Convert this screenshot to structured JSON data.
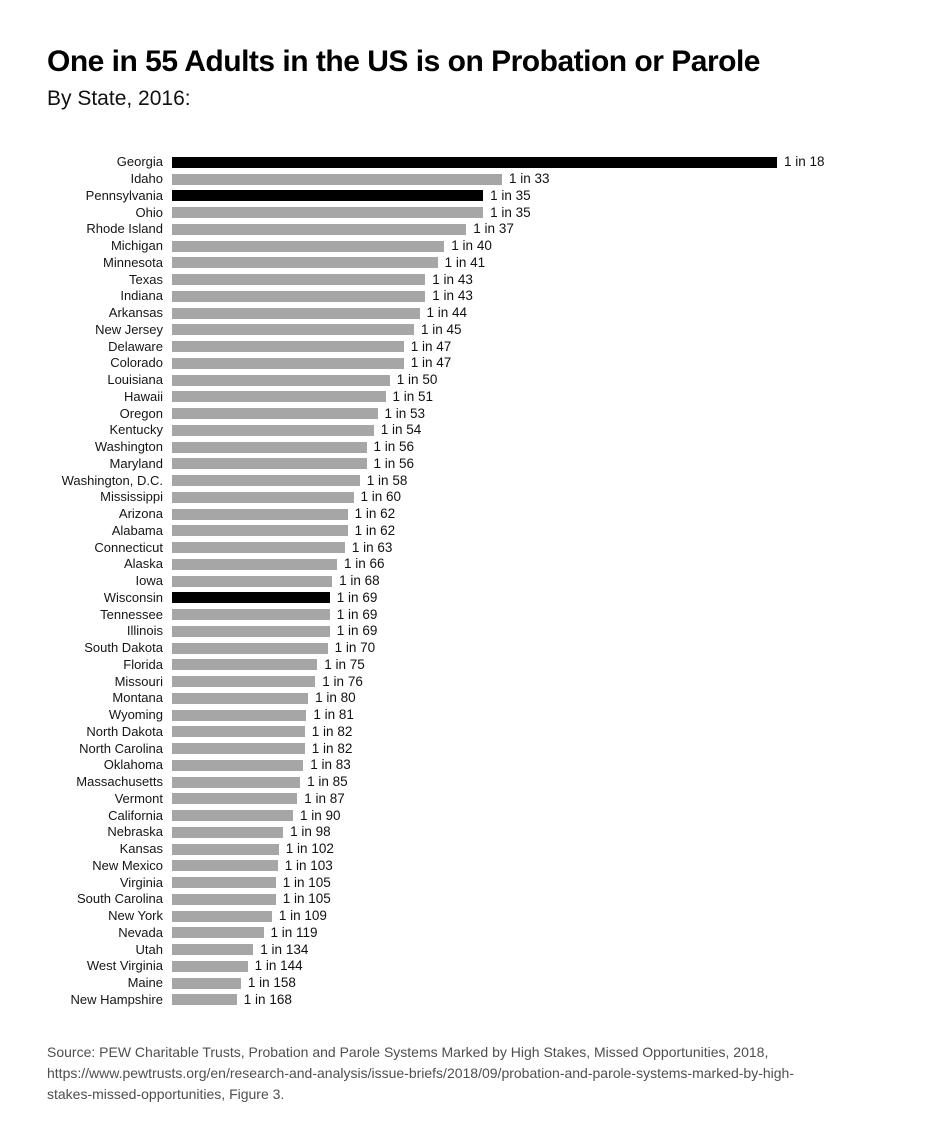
{
  "header": {
    "title": "One in 55 Adults in the US is on Probation or Parole",
    "subtitle": "By State, 2016:"
  },
  "colors": {
    "bar_default": "#a6a6a6",
    "bar_highlight": "#000000",
    "source_text": "#4f4f4f",
    "background": "#ffffff"
  },
  "chart_data": {
    "type": "bar",
    "orientation": "horizontal",
    "title": "One in 55 Adults in the US is on Probation or Parole",
    "subtitle": "By State, 2016:",
    "value_semantics": "1 in N adults on probation or parole; bar length proportional to 1/N",
    "legend": "none",
    "grid": false,
    "rows": [
      {
        "state": "Georgia",
        "denominator": 18,
        "label": "1 in 18",
        "highlight": true
      },
      {
        "state": "Idaho",
        "denominator": 33,
        "label": "1 in 33",
        "highlight": false
      },
      {
        "state": "Pennsylvania",
        "denominator": 35,
        "label": "1 in 35",
        "highlight": true
      },
      {
        "state": "Ohio",
        "denominator": 35,
        "label": "1 in 35",
        "highlight": false
      },
      {
        "state": "Rhode Island",
        "denominator": 37,
        "label": "1 in 37",
        "highlight": false
      },
      {
        "state": "Michigan",
        "denominator": 40,
        "label": "1 in 40",
        "highlight": false
      },
      {
        "state": "Minnesota",
        "denominator": 41,
        "label": "1 in 41",
        "highlight": false
      },
      {
        "state": "Texas",
        "denominator": 43,
        "label": "1 in 43",
        "highlight": false
      },
      {
        "state": "Indiana",
        "denominator": 43,
        "label": "1 in 43",
        "highlight": false
      },
      {
        "state": "Arkansas",
        "denominator": 44,
        "label": "1 in 44",
        "highlight": false
      },
      {
        "state": "New Jersey",
        "denominator": 45,
        "label": "1 in 45",
        "highlight": false
      },
      {
        "state": "Delaware",
        "denominator": 47,
        "label": "1 in 47",
        "highlight": false
      },
      {
        "state": "Colorado",
        "denominator": 47,
        "label": "1 in 47",
        "highlight": false
      },
      {
        "state": "Louisiana",
        "denominator": 50,
        "label": "1 in 50",
        "highlight": false
      },
      {
        "state": "Hawaii",
        "denominator": 51,
        "label": "1 in 51",
        "highlight": false
      },
      {
        "state": "Oregon",
        "denominator": 53,
        "label": "1 in 53",
        "highlight": false
      },
      {
        "state": "Kentucky",
        "denominator": 54,
        "label": "1 in 54",
        "highlight": false
      },
      {
        "state": "Washington",
        "denominator": 56,
        "label": "1 in 56",
        "highlight": false
      },
      {
        "state": "Maryland",
        "denominator": 56,
        "label": "1 in 56",
        "highlight": false
      },
      {
        "state": "Washington, D.C.",
        "denominator": 58,
        "label": "1 in 58",
        "highlight": false
      },
      {
        "state": "Mississippi",
        "denominator": 60,
        "label": "1 in 60",
        "highlight": false
      },
      {
        "state": "Arizona",
        "denominator": 62,
        "label": "1 in 62",
        "highlight": false
      },
      {
        "state": "Alabama",
        "denominator": 62,
        "label": "1 in 62",
        "highlight": false
      },
      {
        "state": "Connecticut",
        "denominator": 63,
        "label": "1 in 63",
        "highlight": false
      },
      {
        "state": "Alaska",
        "denominator": 66,
        "label": "1 in 66",
        "highlight": false
      },
      {
        "state": "Iowa",
        "denominator": 68,
        "label": "1 in 68",
        "highlight": false
      },
      {
        "state": "Wisconsin",
        "denominator": 69,
        "label": "1 in 69",
        "highlight": true
      },
      {
        "state": "Tennessee",
        "denominator": 69,
        "label": "1 in 69",
        "highlight": false
      },
      {
        "state": "Illinois",
        "denominator": 69,
        "label": "1 in 69",
        "highlight": false
      },
      {
        "state": "South Dakota",
        "denominator": 70,
        "label": "1 in 70",
        "highlight": false
      },
      {
        "state": "Florida",
        "denominator": 75,
        "label": "1 in 75",
        "highlight": false
      },
      {
        "state": "Missouri",
        "denominator": 76,
        "label": "1 in 76",
        "highlight": false
      },
      {
        "state": "Montana",
        "denominator": 80,
        "label": "1 in 80",
        "highlight": false
      },
      {
        "state": "Wyoming",
        "denominator": 81,
        "label": "1 in 81",
        "highlight": false
      },
      {
        "state": "North Dakota",
        "denominator": 82,
        "label": "1 in 82",
        "highlight": false
      },
      {
        "state": "North Carolina",
        "denominator": 82,
        "label": "1 in 82",
        "highlight": false
      },
      {
        "state": "Oklahoma",
        "denominator": 83,
        "label": "1 in 83",
        "highlight": false
      },
      {
        "state": "Massachusetts",
        "denominator": 85,
        "label": "1 in 85",
        "highlight": false
      },
      {
        "state": "Vermont",
        "denominator": 87,
        "label": "1 in 87",
        "highlight": false
      },
      {
        "state": "California",
        "denominator": 90,
        "label": "1 in 90",
        "highlight": false
      },
      {
        "state": "Nebraska",
        "denominator": 98,
        "label": "1 in 98",
        "highlight": false
      },
      {
        "state": "Kansas",
        "denominator": 102,
        "label": "1 in 102",
        "highlight": false
      },
      {
        "state": "New Mexico",
        "denominator": 103,
        "label": "1 in 103",
        "highlight": false
      },
      {
        "state": "Virginia",
        "denominator": 105,
        "label": "1 in 105",
        "highlight": false
      },
      {
        "state": "South Carolina",
        "denominator": 105,
        "label": "1 in 105",
        "highlight": false
      },
      {
        "state": "New York",
        "denominator": 109,
        "label": "1 in 109",
        "highlight": false
      },
      {
        "state": "Nevada",
        "denominator": 119,
        "label": "1 in 119",
        "highlight": false
      },
      {
        "state": "Utah",
        "denominator": 134,
        "label": "1 in 134",
        "highlight": false
      },
      {
        "state": "West Virginia",
        "denominator": 144,
        "label": "1 in 144",
        "highlight": false
      },
      {
        "state": "Maine",
        "denominator": 158,
        "label": "1 in 158",
        "highlight": false
      },
      {
        "state": "New Hampshire",
        "denominator": 168,
        "label": "1 in 168",
        "highlight": false
      }
    ]
  },
  "source": {
    "lines": [
      "Source: PEW Charitable Trusts, Probation and Parole Systems Marked by High Stakes, Missed Opportunities, 2018,",
      "https://www.pewtrusts.org/en/research-and-analysis/issue-briefs/2018/09/probation-and-parole-systems-marked-by-high-",
      "stakes-missed-opportunities, Figure 3."
    ]
  }
}
